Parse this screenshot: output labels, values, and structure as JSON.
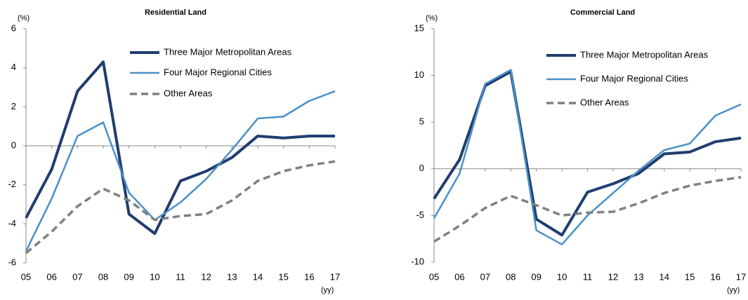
{
  "chart_data": [
    {
      "type": "line",
      "title": "Residential Land",
      "y_label": "(%)",
      "x_label": "(yy)",
      "categories": [
        "05",
        "06",
        "07",
        "08",
        "09",
        "10",
        "11",
        "12",
        "13",
        "14",
        "15",
        "16",
        "17"
      ],
      "ylim": [
        -6,
        6
      ],
      "yticks": [
        -6,
        -4,
        -2,
        0,
        2,
        4,
        6
      ],
      "series": [
        {
          "name": "Three Major Metropolitan Areas",
          "color": "#1f3d6e",
          "values": [
            -3.7,
            -1.2,
            2.8,
            4.3,
            -3.5,
            -4.5,
            -1.8,
            -1.3,
            -0.6,
            0.5,
            0.4,
            0.5,
            0.5
          ]
        },
        {
          "name": "Four Major Regional Cities",
          "color": "#4a90c8",
          "values": [
            -5.4,
            -2.7,
            0.5,
            1.2,
            -2.4,
            -3.8,
            -2.9,
            -1.7,
            -0.2,
            1.4,
            1.5,
            2.3,
            2.8
          ]
        },
        {
          "name": "Other Areas",
          "color": "#808080",
          "dashed": true,
          "values": [
            -5.5,
            -4.4,
            -3.1,
            -2.2,
            -2.8,
            -3.8,
            -3.6,
            -3.5,
            -2.8,
            -1.8,
            -1.3,
            -1.0,
            -0.8
          ]
        }
      ]
    },
    {
      "type": "line",
      "title": "Commercial Land",
      "y_label": "(%)",
      "x_label": "(yy)",
      "categories": [
        "05",
        "06",
        "07",
        "08",
        "09",
        "10",
        "11",
        "12",
        "13",
        "14",
        "15",
        "16",
        "17"
      ],
      "ylim": [
        -10,
        15
      ],
      "yticks": [
        -10,
        -5,
        0,
        5,
        10,
        15
      ],
      "series": [
        {
          "name": "Three Major Metropolitan Areas",
          "color": "#1f3d6e",
          "values": [
            -3.2,
            1.0,
            8.9,
            10.4,
            -5.4,
            -7.1,
            -2.5,
            -1.6,
            -0.5,
            1.6,
            1.8,
            2.9,
            3.3
          ]
        },
        {
          "name": "Four Major Regional Cities",
          "color": "#4a90c8",
          "values": [
            -5.3,
            -0.5,
            9.1,
            10.6,
            -6.6,
            -8.1,
            -5.0,
            -2.6,
            -0.2,
            2.0,
            2.7,
            5.7,
            6.9
          ]
        },
        {
          "name": "Other Areas",
          "color": "#808080",
          "dashed": true,
          "values": [
            -7.8,
            -6.1,
            -4.2,
            -2.9,
            -3.9,
            -5.0,
            -4.7,
            -4.6,
            -3.7,
            -2.6,
            -1.8,
            -1.3,
            -0.9
          ]
        }
      ]
    }
  ]
}
